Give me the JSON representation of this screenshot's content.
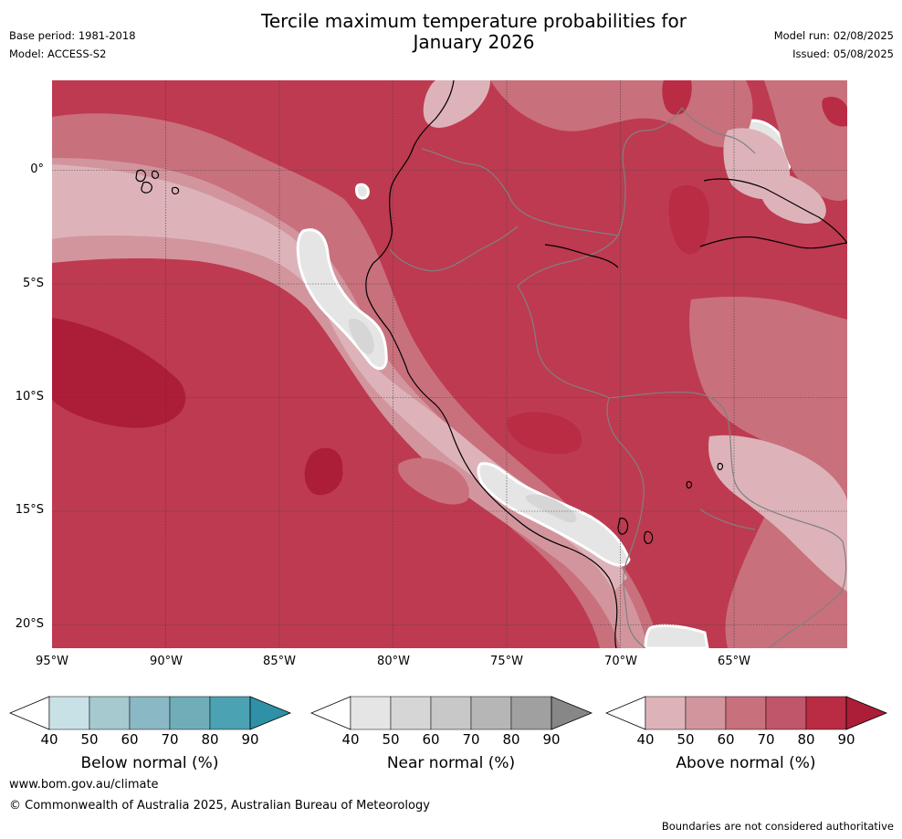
{
  "header": {
    "title_line1": "Tercile maximum temperature probabilities for",
    "title_line2": "January 2026",
    "base_period": "Base period: 1981-2018",
    "model": "Model: ACCESS-S2",
    "model_run": "Model run: 02/08/2025",
    "issued": "Issued: 05/08/2025"
  },
  "map": {
    "latitude_labels": [
      "0°",
      "5°S",
      "10°S",
      "15°S",
      "20°S"
    ],
    "longitude_labels": [
      "95°W",
      "90°W",
      "85°W",
      "80°W",
      "75°W",
      "70°W",
      "65°W"
    ],
    "colors": {
      "above_40": "#ffffff",
      "above_50": "#ddb3b9",
      "above_60": "#d2959e",
      "above_70": "#c9707d",
      "above_80": "#c0566a",
      "above_90": "#b92c43",
      "above_max": "#ac1d38",
      "near_50": "#e5e5e5",
      "near_60": "#d6d6d6",
      "coast": "#000000",
      "borders": "#808080",
      "grid": "#404040"
    }
  },
  "colorbars": [
    {
      "name": "below",
      "label": "Below normal (%)",
      "ticks": [
        "40",
        "50",
        "60",
        "70",
        "80",
        "90"
      ],
      "colors": [
        "#ffffff",
        "#c8e1e6",
        "#a6c8cf",
        "#8ab8c4",
        "#6fadb9",
        "#4ba2b2",
        "#2f91a7"
      ]
    },
    {
      "name": "near",
      "label": "Near normal (%)",
      "ticks": [
        "40",
        "50",
        "60",
        "70",
        "80",
        "90"
      ],
      "colors": [
        "#ffffff",
        "#e5e5e5",
        "#d6d6d6",
        "#c8c8c8",
        "#b6b6b6",
        "#a0a0a0",
        "#878787"
      ]
    },
    {
      "name": "above",
      "label": "Above normal (%)",
      "ticks": [
        "40",
        "50",
        "60",
        "70",
        "80",
        "90"
      ],
      "colors": [
        "#ffffff",
        "#ddb3b9",
        "#d2959e",
        "#c9707d",
        "#c0566a",
        "#b92c43",
        "#ac1d38"
      ]
    }
  ],
  "footer": {
    "website": "www.bom.gov.au/climate",
    "copyright": "© Commonwealth of Australia 2025, Australian Bureau of Meteorology",
    "disclaimer": "Boundaries are not considered authoritative"
  }
}
